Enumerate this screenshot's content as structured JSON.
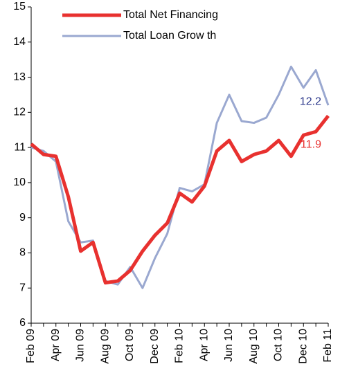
{
  "chart_data": {
    "type": "line",
    "categories": [
      "Feb 09",
      null,
      "Apr 09",
      null,
      "Jun 09",
      null,
      "Aug 09",
      null,
      "Oct 09",
      null,
      "Dec 09",
      null,
      "Feb 10",
      null,
      "Apr 10",
      null,
      "Jun 10",
      null,
      "Aug 10",
      null,
      "Oct 10",
      null,
      "Dec 10",
      null,
      "Feb 11"
    ],
    "series": [
      {
        "name": "Total Net Financing",
        "color": "#e8312f",
        "values": [
          11.1,
          10.8,
          10.75,
          9.6,
          8.05,
          8.3,
          7.15,
          7.2,
          7.5,
          8.05,
          8.5,
          8.85,
          9.7,
          9.45,
          9.9,
          10.9,
          11.2,
          10.6,
          10.8,
          10.9,
          11.2,
          10.75,
          11.35,
          11.45,
          11.9
        ],
        "value_labels": [
          null,
          null,
          null,
          null,
          null,
          null,
          null,
          null,
          null,
          null,
          null,
          null,
          null,
          null,
          null,
          null,
          null,
          null,
          null,
          null,
          null,
          null,
          null,
          null,
          "11.9"
        ]
      },
      {
        "name": "Total Loan Grow th",
        "color": "#9aa8d0",
        "values": [
          11.0,
          10.9,
          10.6,
          8.9,
          8.3,
          8.35,
          7.2,
          7.1,
          7.6,
          7.0,
          7.85,
          8.55,
          9.85,
          9.75,
          9.95,
          11.7,
          12.5,
          11.75,
          11.7,
          11.85,
          12.5,
          13.3,
          12.7,
          13.2,
          12.2
        ],
        "value_labels": [
          null,
          null,
          null,
          null,
          null,
          null,
          null,
          null,
          null,
          null,
          null,
          null,
          null,
          null,
          null,
          null,
          null,
          null,
          null,
          null,
          null,
          null,
          null,
          null,
          "12.2"
        ]
      }
    ],
    "value_label_colors": [
      "#e8312f",
      "#2e3a8c"
    ],
    "ylim": [
      6,
      15
    ],
    "yticks": [
      6,
      7,
      8,
      9,
      10,
      11,
      12,
      13,
      14,
      15
    ],
    "grid": false,
    "legend": "upper left"
  }
}
